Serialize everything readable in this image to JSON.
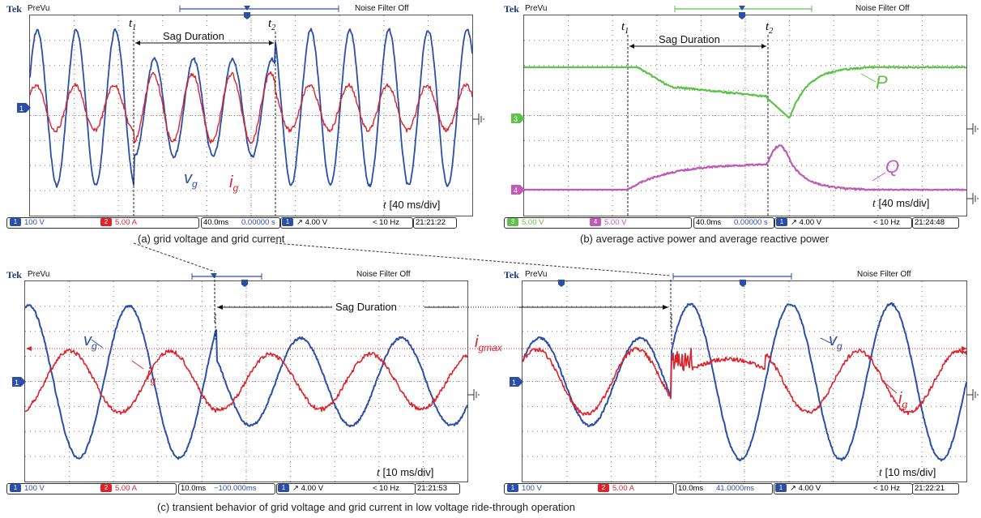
{
  "panels": {
    "a": {
      "prevu": "PreVu",
      "noise": "Noise Filter Off",
      "tek": "Tek",
      "tdiv": "[40 ms/div]",
      "t1": "t",
      "t1s": "1",
      "t2": "t",
      "t2s": "2",
      "sag": "Sag Duration",
      "vg": "v",
      "vg_sub": "g",
      "ig": "i",
      "ig_sub": "g",
      "status": {
        "ch1": "100 V",
        "ch2": "5.00 A",
        "tb": "40.0ms",
        "pos": "0.00000 s",
        "trig": "4.00 V",
        "freq": "< 10 Hz",
        "time": "21:21:22"
      },
      "caption": "(a) grid voltage and grid current"
    },
    "b": {
      "prevu": "PreVu",
      "noise": "Noise Filter Off",
      "tek": "Tek",
      "tdiv": "[40 ms/div]",
      "t1": "t",
      "t1s": "1",
      "t2": "t",
      "t2s": "2",
      "sag": "Sag Duration",
      "p": "P",
      "q": "Q",
      "status": {
        "ch3": "5.00 V",
        "ch4": "5.00 V",
        "tb": "40.0ms",
        "pos": "0.00000 s",
        "trig": "4.00 V",
        "freq": "< 10 Hz",
        "time": "21:24:48"
      },
      "caption": "(b) average active power and average reactive power"
    },
    "c1": {
      "prevu": "PreVu",
      "noise": "Noise Filter Off",
      "tek": "Tek",
      "tdiv": "[10 ms/div]",
      "vg": "v",
      "vg_sub": "g",
      "ig": "i",
      "ig_sub": "g",
      "status": {
        "ch1": "100 V",
        "ch2": "5.00 A",
        "tb": "10.0ms",
        "pos": "−100.000ms",
        "trig": "4.00 V",
        "freq": "< 10 Hz",
        "time": "21:21:53"
      }
    },
    "c2": {
      "prevu": "PreVu",
      "noise": "Noise Filter Off",
      "tek": "Tek",
      "tdiv": "[10 ms/div]",
      "vg": "v",
      "vg_sub": "g",
      "ig": "i",
      "ig_sub": "g",
      "status": {
        "ch1": "100 V",
        "ch2": "5.00 A",
        "tb": "10.0ms",
        "pos": "41.0000ms",
        "trig": "4.00 V",
        "freq": "< 10 Hz",
        "time": "21:22:21"
      }
    },
    "c_shared": {
      "sag": "Sag Duration",
      "igmax": "i",
      "igmax_sub": "gmax",
      "caption": "(c) transient behavior of grid voltage and grid current in low voltage ride-through operation"
    }
  },
  "markers": {
    "ch1": "1",
    "ch2": "2",
    "ch3": "3",
    "ch4": "4",
    "t": "t"
  },
  "colors": {
    "blue": "#2b4fa8",
    "red": "#e0222a",
    "green": "#5ec24a",
    "magenta": "#c05ab5"
  }
}
